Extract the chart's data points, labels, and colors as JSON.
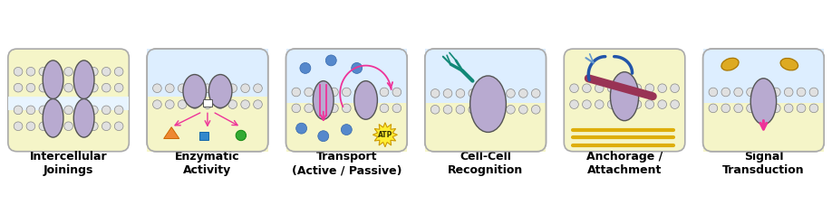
{
  "panels": [
    {
      "label": "Intercellular\nJoinings",
      "bg": "#f5f5c8",
      "type": "intercellular"
    },
    {
      "label": "Enzymatic\nActivity",
      "bg": "#ddeeff",
      "type": "enzymatic"
    },
    {
      "label": "Transport\n(Active / Passive)",
      "bg": "#ddeeff",
      "type": "transport"
    },
    {
      "label": "Cell-Cell\nRecognition",
      "bg": "#f5f5c8",
      "type": "cellcell"
    },
    {
      "label": "Anchorage /\nAttachment",
      "bg": "#f5f5c8",
      "type": "anchorage"
    },
    {
      "label": "Signal\nTransduction",
      "bg": "#ddeeff",
      "type": "signal"
    }
  ],
  "protein_fill": "#b8aad0",
  "protein_outline": "#555555",
  "lipid_head_fill": "#e0e0e0",
  "lipid_head_outline": "#888888",
  "pink_arrow": "#ee3399",
  "blue_dot": "#5588cc",
  "atp_yellow": "#ffee33",
  "atp_outline": "#cc9900",
  "teal_chain": "#118877",
  "dark_red_bar": "#993355",
  "dark_blue_curve": "#2244aa",
  "gold_shape": "#ddaa22",
  "orange_triangle": "#ee8833",
  "blue_square": "#3388cc",
  "green_dot": "#33aa33",
  "gold_fiber": "#ddaa00",
  "figure_bg": "#ffffff",
  "label_fontsize": 9.0,
  "label_fontweight": "bold",
  "gap_strip_color": "#e8f4ff"
}
